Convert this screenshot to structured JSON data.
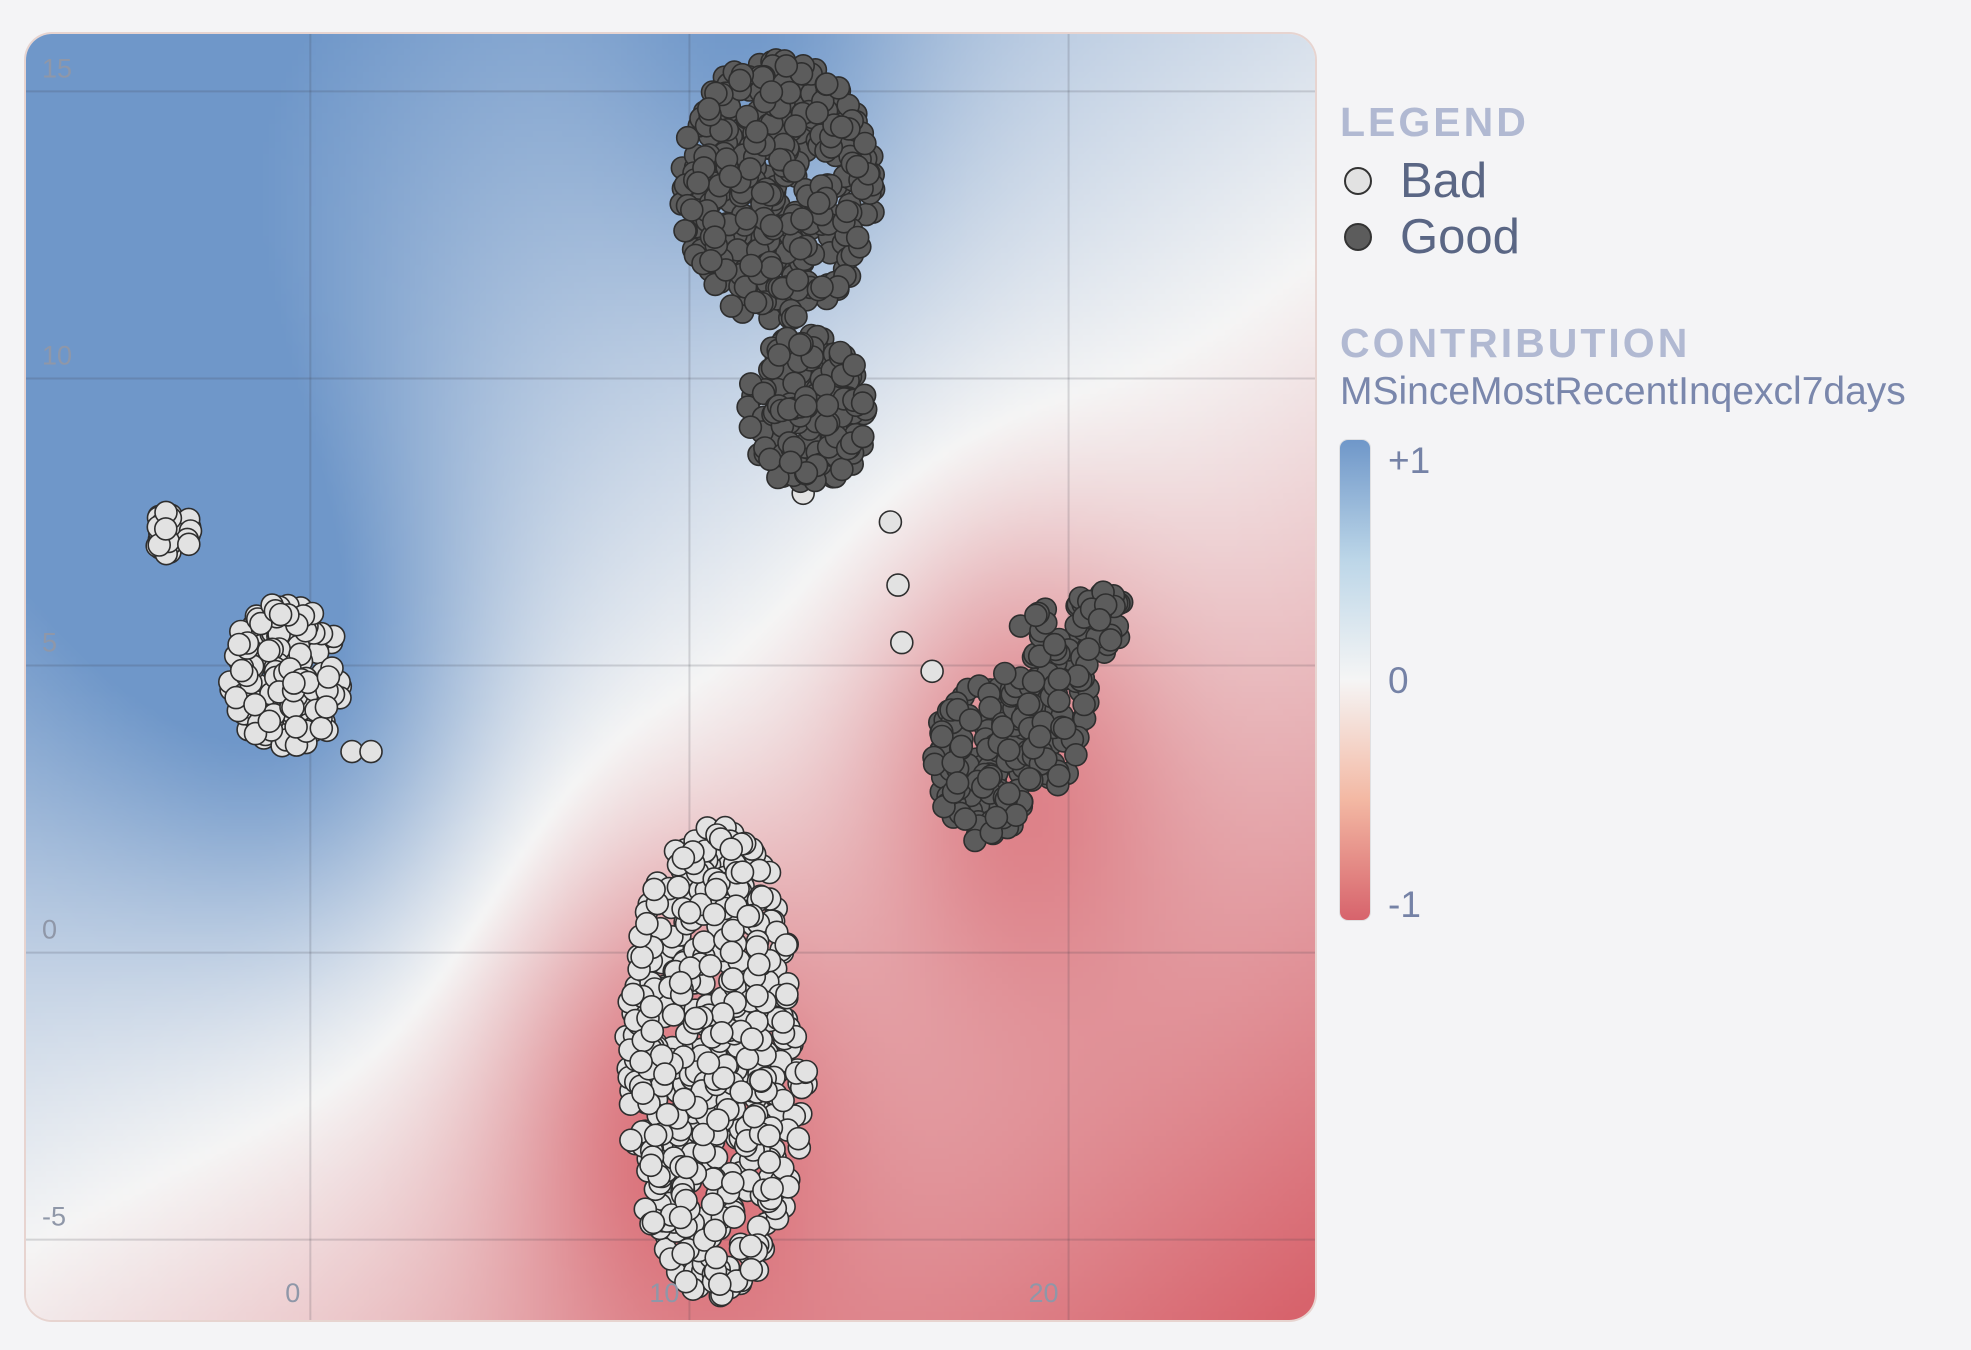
{
  "chart_data": {
    "type": "scatter",
    "title": "",
    "xlabel": "",
    "ylabel": "",
    "xlim": [
      -7.5,
      26.5
    ],
    "ylim": [
      -6.4,
      16.0
    ],
    "x_ticks": [
      0,
      10,
      20
    ],
    "y_ticks": [
      15,
      10,
      5,
      0,
      -5
    ],
    "x_tick_labels": [
      "0",
      "10",
      "20"
    ],
    "y_tick_labels": [
      "15",
      "10",
      "5",
      "0",
      "-5"
    ],
    "grid": true,
    "legend_position": "right",
    "series": [
      {
        "name": "Bad",
        "color": "#e2e2e2",
        "clusters": [
          {
            "cx": -3.6,
            "cy": 7.3,
            "rx": 0.5,
            "ry": 0.5,
            "n": 28
          },
          {
            "cx": -0.6,
            "cy": 4.8,
            "rx": 1.6,
            "ry": 1.3,
            "n": 170
          },
          {
            "cx": 10.7,
            "cy": -1.9,
            "rx": 2.4,
            "ry": 4.1,
            "n": 560
          }
        ],
        "points": [
          {
            "x": 15.3,
            "y": 7.5
          },
          {
            "x": 15.5,
            "y": 6.4
          },
          {
            "x": 15.6,
            "y": 5.4
          },
          {
            "x": 16.4,
            "y": 4.9
          },
          {
            "x": 18.2,
            "y": 4.3
          },
          {
            "x": 18.5,
            "y": 4.3
          },
          {
            "x": 1.1,
            "y": 3.5
          },
          {
            "x": 1.6,
            "y": 3.5
          },
          {
            "x": 13.0,
            "y": 8.0
          },
          {
            "x": 11.1,
            "y": 1.8
          },
          {
            "x": 11.4,
            "y": 1.4
          }
        ]
      },
      {
        "name": "Good",
        "color": "#5c5c5c",
        "clusters": [
          {
            "cx": 12.3,
            "cy": 13.3,
            "rx": 2.6,
            "ry": 2.3,
            "n": 420
          },
          {
            "cx": 13.1,
            "cy": 9.4,
            "rx": 1.6,
            "ry": 1.4,
            "n": 170
          },
          {
            "cx": 17.7,
            "cy": 3.3,
            "rx": 1.3,
            "ry": 1.4,
            "n": 140
          },
          {
            "cx": 19.4,
            "cy": 4.4,
            "rx": 1.2,
            "ry": 1.6,
            "n": 110
          },
          {
            "cx": 20.8,
            "cy": 5.8,
            "rx": 0.7,
            "ry": 0.6,
            "n": 40
          }
        ],
        "points": []
      }
    ],
    "colorbar": {
      "title": "CONTRIBUTION",
      "feature": "MSinceMostRecentInqexcl7days",
      "max_label": "+1",
      "mid_label": "0",
      "min_label": "-1",
      "range": [
        -1,
        1
      ],
      "colors": {
        "positive": "#6f97c9",
        "neutral": "#f5f5f5",
        "negative": "#d7636c"
      }
    }
  },
  "legend": {
    "title": "LEGEND",
    "items": [
      {
        "label": "Bad",
        "color": "#e2e2e2"
      },
      {
        "label": "Good",
        "color": "#5c5c5c"
      }
    ]
  }
}
